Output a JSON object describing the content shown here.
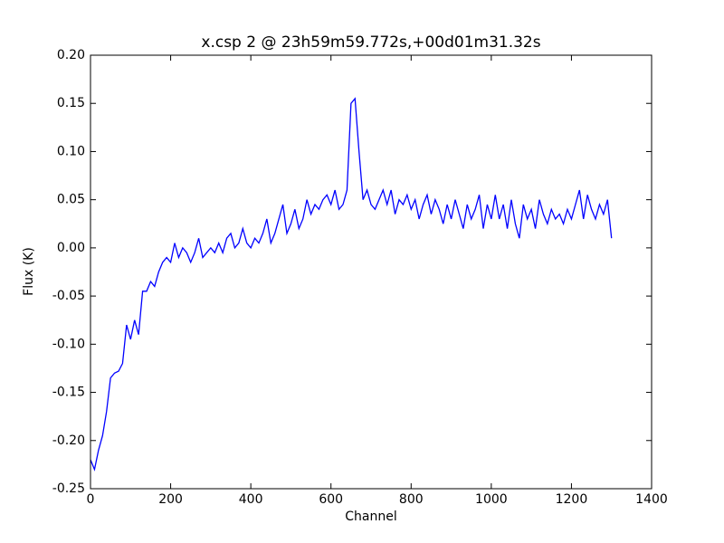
{
  "chart_data": {
    "type": "line",
    "title": "x.csp 2 @ 23h59m59.772s,+00d01m31.32s",
    "x_label": "Channel",
    "y_label": "Flux (K)",
    "xlim": [
      0,
      1400
    ],
    "xticks": [
      0,
      200,
      400,
      600,
      800,
      1000,
      1200,
      1400
    ],
    "ylim": [
      -0.25,
      0.2
    ],
    "yticks": [
      -0.25,
      {
        "value": -0.2,
        "label": "-0.20"
      },
      -0.15,
      {
        "value": -0.1,
        "label": "-0.10"
      },
      -0.05,
      {
        "value": 0,
        "label": "0.00"
      },
      0.05,
      {
        "value": 0.1,
        "label": "0.10"
      },
      0.15,
      {
        "value": 0.2,
        "label": "0.20"
      }
    ],
    "grid": false,
    "series": [
      {
        "color": "#0000ff",
        "x": [
          0,
          10,
          20,
          30,
          40,
          50,
          60,
          70,
          80,
          90,
          100,
          110,
          120,
          130,
          140,
          150,
          160,
          170,
          180,
          190,
          200,
          210,
          220,
          230,
          240,
          250,
          260,
          270,
          280,
          290,
          300,
          310,
          320,
          330,
          340,
          350,
          360,
          370,
          380,
          390,
          400,
          410,
          420,
          430,
          440,
          450,
          460,
          470,
          480,
          490,
          500,
          510,
          520,
          530,
          540,
          550,
          560,
          570,
          580,
          590,
          600,
          610,
          620,
          630,
          640,
          650,
          660,
          670,
          680,
          690,
          700,
          710,
          720,
          730,
          740,
          750,
          760,
          770,
          780,
          790,
          800,
          810,
          820,
          830,
          840,
          850,
          860,
          870,
          880,
          890,
          900,
          910,
          920,
          930,
          940,
          950,
          960,
          970,
          980,
          990,
          1000,
          1010,
          1020,
          1030,
          1040,
          1050,
          1060,
          1070,
          1080,
          1090,
          1100,
          1110,
          1120,
          1130,
          1140,
          1150,
          1160,
          1170,
          1180,
          1190,
          1200,
          1210,
          1220,
          1230,
          1240,
          1250,
          1260,
          1270,
          1280,
          1290,
          1300
        ],
        "values": [
          -0.22,
          -0.23,
          -0.21,
          -0.195,
          -0.17,
          -0.135,
          -0.13,
          -0.128,
          -0.12,
          -0.08,
          -0.095,
          -0.075,
          -0.09,
          -0.045,
          -0.045,
          -0.035,
          -0.04,
          -0.025,
          -0.015,
          -0.01,
          -0.015,
          0.005,
          -0.01,
          0,
          -0.005,
          -0.015,
          -0.005,
          0.01,
          -0.01,
          -0.005,
          0,
          -0.005,
          0.005,
          -0.005,
          0.01,
          0.015,
          0,
          0.005,
          0.02,
          0.005,
          0,
          0.01,
          0.005,
          0.015,
          0.03,
          0.005,
          0.015,
          0.03,
          0.045,
          0.015,
          0.025,
          0.04,
          0.02,
          0.03,
          0.05,
          0.035,
          0.045,
          0.04,
          0.05,
          0.055,
          0.045,
          0.06,
          0.04,
          0.045,
          0.06,
          0.15,
          0.155,
          0.1,
          0.05,
          0.06,
          0.045,
          0.04,
          0.05,
          0.06,
          0.045,
          0.06,
          0.035,
          0.05,
          0.045,
          0.055,
          0.04,
          0.05,
          0.03,
          0.045,
          0.055,
          0.035,
          0.05,
          0.04,
          0.025,
          0.045,
          0.03,
          0.05,
          0.035,
          0.02,
          0.045,
          0.03,
          0.04,
          0.055,
          0.02,
          0.045,
          0.03,
          0.055,
          0.03,
          0.045,
          0.02,
          0.05,
          0.025,
          0.01,
          0.045,
          0.03,
          0.04,
          0.02,
          0.05,
          0.035,
          0.025,
          0.04,
          0.03,
          0.035,
          0.025,
          0.04,
          0.03,
          0.045,
          0.06,
          0.03,
          0.055,
          0.04,
          0.03,
          0.045,
          0.035,
          0.05,
          0.01
        ]
      }
    ]
  }
}
